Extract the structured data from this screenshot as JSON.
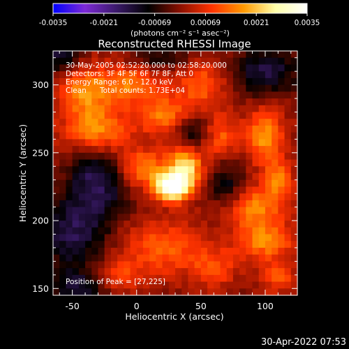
{
  "chart_data": {
    "type": "heatmap",
    "title": "Reconstructed RHESSI Image",
    "xlabel": "Heliocentric X (arcsec)",
    "ylabel": "Heliocentric Y (arcsec)",
    "xlim": [
      -65,
      125
    ],
    "ylim": [
      145,
      325
    ],
    "x_ticks": [
      -50,
      0,
      50,
      100
    ],
    "y_ticks": [
      150,
      200,
      250,
      300
    ],
    "colorbar": {
      "ticks": [
        "-0.0035",
        "-0.0021",
        "-0.00069",
        "0.00069",
        "0.0021",
        "0.0035"
      ],
      "range": [
        -0.0035,
        0.0035
      ],
      "units": "(photons cm⁻² s⁻¹ asec⁻²)",
      "colors": [
        "#0000ff",
        "#7d2ad6",
        "#3b1a6a",
        "#000000",
        "#8a1000",
        "#ff3300",
        "#ff9900",
        "#ffffaa",
        "#ffffff"
      ]
    },
    "annotations": [
      "30-May-2005 02:52:20.000 to 02:58:20.000",
      "Detectors: 3F 4F 5F 6F 7F 8F, Att 0",
      "Energy Range: 6.0 - 12.0 keV",
      "Clean",
      "Total counts: 1.73E+04"
    ],
    "peak_label": "Position of Peak = [27,225]",
    "peak": [
      27,
      225
    ],
    "blobs": [
      {
        "x": 27,
        "y": 225,
        "sx": 9,
        "sy": 7,
        "a": 1.0
      },
      {
        "x": 38,
        "y": 238,
        "sx": 9,
        "sy": 11,
        "a": 0.7
      },
      {
        "x": 5,
        "y": 238,
        "sx": 14,
        "sy": 10,
        "a": 0.45
      },
      {
        "x": -30,
        "y": 265,
        "sx": 18,
        "sy": 12,
        "a": 0.5
      },
      {
        "x": -40,
        "y": 295,
        "sx": 14,
        "sy": 14,
        "a": 0.45
      },
      {
        "x": -5,
        "y": 300,
        "sx": 16,
        "sy": 10,
        "a": 0.4
      },
      {
        "x": 20,
        "y": 278,
        "sx": 14,
        "sy": 10,
        "a": 0.4
      },
      {
        "x": 50,
        "y": 300,
        "sx": 14,
        "sy": 12,
        "a": 0.35
      },
      {
        "x": 65,
        "y": 262,
        "sx": 10,
        "sy": 12,
        "a": 0.35
      },
      {
        "x": 100,
        "y": 262,
        "sx": 10,
        "sy": 14,
        "a": 0.5
      },
      {
        "x": 110,
        "y": 230,
        "sx": 8,
        "sy": 10,
        "a": 0.4
      },
      {
        "x": 90,
        "y": 210,
        "sx": 16,
        "sy": 10,
        "a": 0.45
      },
      {
        "x": 100,
        "y": 185,
        "sx": 16,
        "sy": 10,
        "a": 0.45
      },
      {
        "x": 20,
        "y": 180,
        "sx": 22,
        "sy": 14,
        "a": 0.35
      },
      {
        "x": -15,
        "y": 160,
        "sx": 14,
        "sy": 8,
        "a": 0.25
      },
      {
        "x": 60,
        "y": 165,
        "sx": 12,
        "sy": 10,
        "a": 0.3
      },
      {
        "x": 110,
        "y": 158,
        "sx": 10,
        "sy": 8,
        "a": 0.3
      },
      {
        "x": -30,
        "y": 230,
        "sx": 16,
        "sy": 20,
        "a": -0.45
      },
      {
        "x": -50,
        "y": 190,
        "sx": 18,
        "sy": 18,
        "a": -0.4
      },
      {
        "x": -45,
        "y": 150,
        "sx": 14,
        "sy": 10,
        "a": -0.35
      },
      {
        "x": 100,
        "y": 310,
        "sx": 18,
        "sy": 12,
        "a": -0.4
      },
      {
        "x": 70,
        "y": 225,
        "sx": 10,
        "sy": 14,
        "a": -0.3
      },
      {
        "x": 45,
        "y": 265,
        "sx": 10,
        "sy": 8,
        "a": -0.3
      },
      {
        "x": -60,
        "y": 320,
        "sx": 12,
        "sy": 8,
        "a": -0.35
      },
      {
        "x": 20,
        "y": 320,
        "sx": 16,
        "sy": 6,
        "a": -0.25
      }
    ]
  },
  "footer": {
    "timestamp": "30-Apr-2022 07:53"
  }
}
